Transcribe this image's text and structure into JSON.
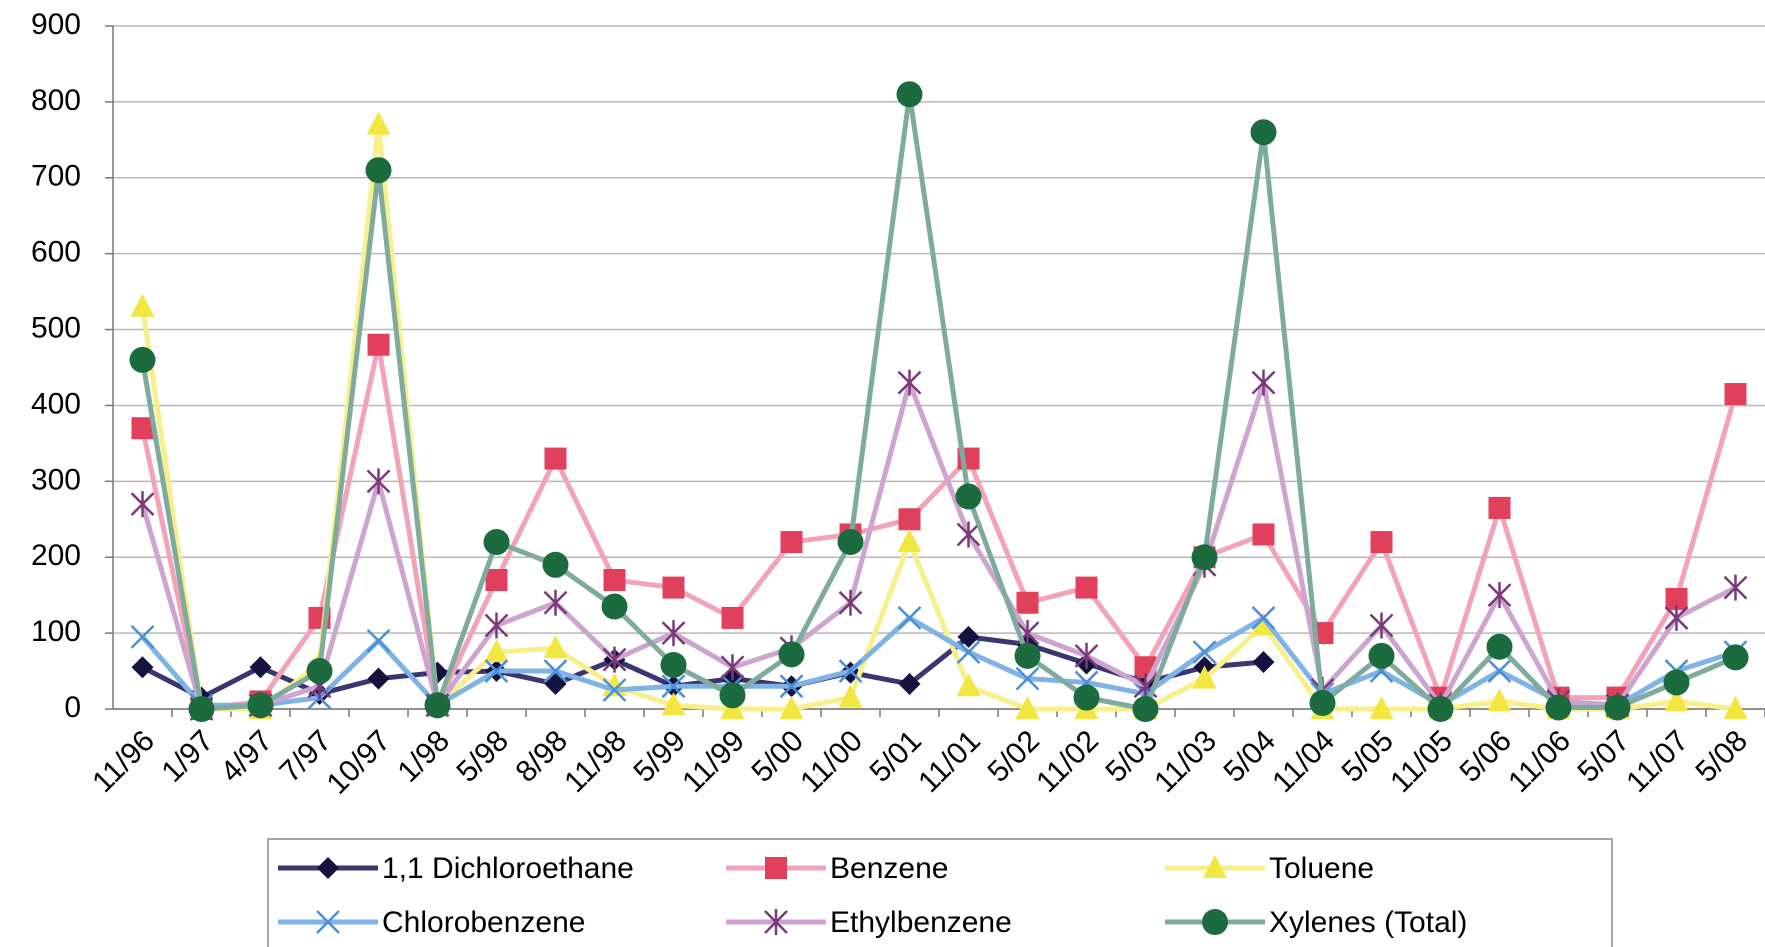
{
  "chart_data": {
    "type": "line",
    "categories": [
      "11/96",
      "1/97",
      "4/97",
      "7/97",
      "10/97",
      "1/98",
      "5/98",
      "8/98",
      "11/98",
      "5/99",
      "11/99",
      "5/00",
      "11/00",
      "5/01",
      "11/01",
      "5/02",
      "11/02",
      "5/03",
      "11/03",
      "5/04",
      "11/04",
      "5/05",
      "11/05",
      "5/06",
      "11/06",
      "5/07",
      "11/07",
      "5/08"
    ],
    "ylim": [
      0,
      900
    ],
    "yticks": [
      0,
      100,
      200,
      300,
      400,
      500,
      600,
      700,
      800,
      900
    ],
    "grid": true,
    "legend": "bottom",
    "series": [
      {
        "name": "1,1 Dichloroethane",
        "color": "#3b3570",
        "marker_color": "#14123e",
        "marker": "diamond",
        "values": [
          55,
          15,
          55,
          20,
          40,
          48,
          50,
          33,
          65,
          30,
          40,
          30,
          48,
          33,
          95,
          85,
          60,
          35,
          55,
          62,
          null,
          null,
          null,
          null,
          null,
          null,
          null,
          null
        ]
      },
      {
        "name": "Benzene",
        "color": "#f3a3b8",
        "marker_color": "#e0405c",
        "marker": "square",
        "values": [
          370,
          0,
          10,
          120,
          480,
          5,
          170,
          330,
          170,
          160,
          120,
          220,
          230,
          250,
          330,
          140,
          160,
          55,
          200,
          230,
          100,
          220,
          15,
          265,
          15,
          15,
          145,
          415
        ]
      },
      {
        "name": "Toluene",
        "color": "#f7f08a",
        "marker_color": "#f2e640",
        "marker": "triangle",
        "values": [
          530,
          0,
          0,
          60,
          770,
          5,
          75,
          80,
          30,
          5,
          0,
          0,
          15,
          220,
          30,
          0,
          0,
          0,
          40,
          110,
          0,
          0,
          0,
          10,
          0,
          0,
          10,
          0
        ]
      },
      {
        "name": "Chlorobenzene",
        "color": "#7fb2e5",
        "marker_color": "#4a90d9",
        "marker": "x",
        "values": [
          95,
          5,
          5,
          15,
          90,
          5,
          50,
          50,
          25,
          30,
          30,
          30,
          50,
          120,
          75,
          40,
          35,
          20,
          75,
          120,
          20,
          50,
          5,
          50,
          10,
          5,
          50,
          75
        ]
      },
      {
        "name": "Ethylbenzene",
        "color": "#cda4cf",
        "marker_color": "#7a3a7a",
        "marker": "star",
        "values": [
          270,
          0,
          5,
          30,
          300,
          5,
          110,
          140,
          65,
          100,
          55,
          80,
          140,
          430,
          230,
          100,
          70,
          30,
          190,
          430,
          25,
          110,
          5,
          150,
          10,
          5,
          120,
          160
        ]
      },
      {
        "name": "Xylenes (Total)",
        "color": "#7fab9e",
        "marker_color": "#1c6b3e",
        "marker": "circle",
        "values": [
          460,
          0,
          5,
          50,
          710,
          5,
          220,
          190,
          135,
          58,
          18,
          72,
          220,
          810,
          280,
          70,
          15,
          0,
          200,
          760,
          8,
          70,
          0,
          82,
          2,
          2,
          35,
          68
        ]
      }
    ]
  }
}
